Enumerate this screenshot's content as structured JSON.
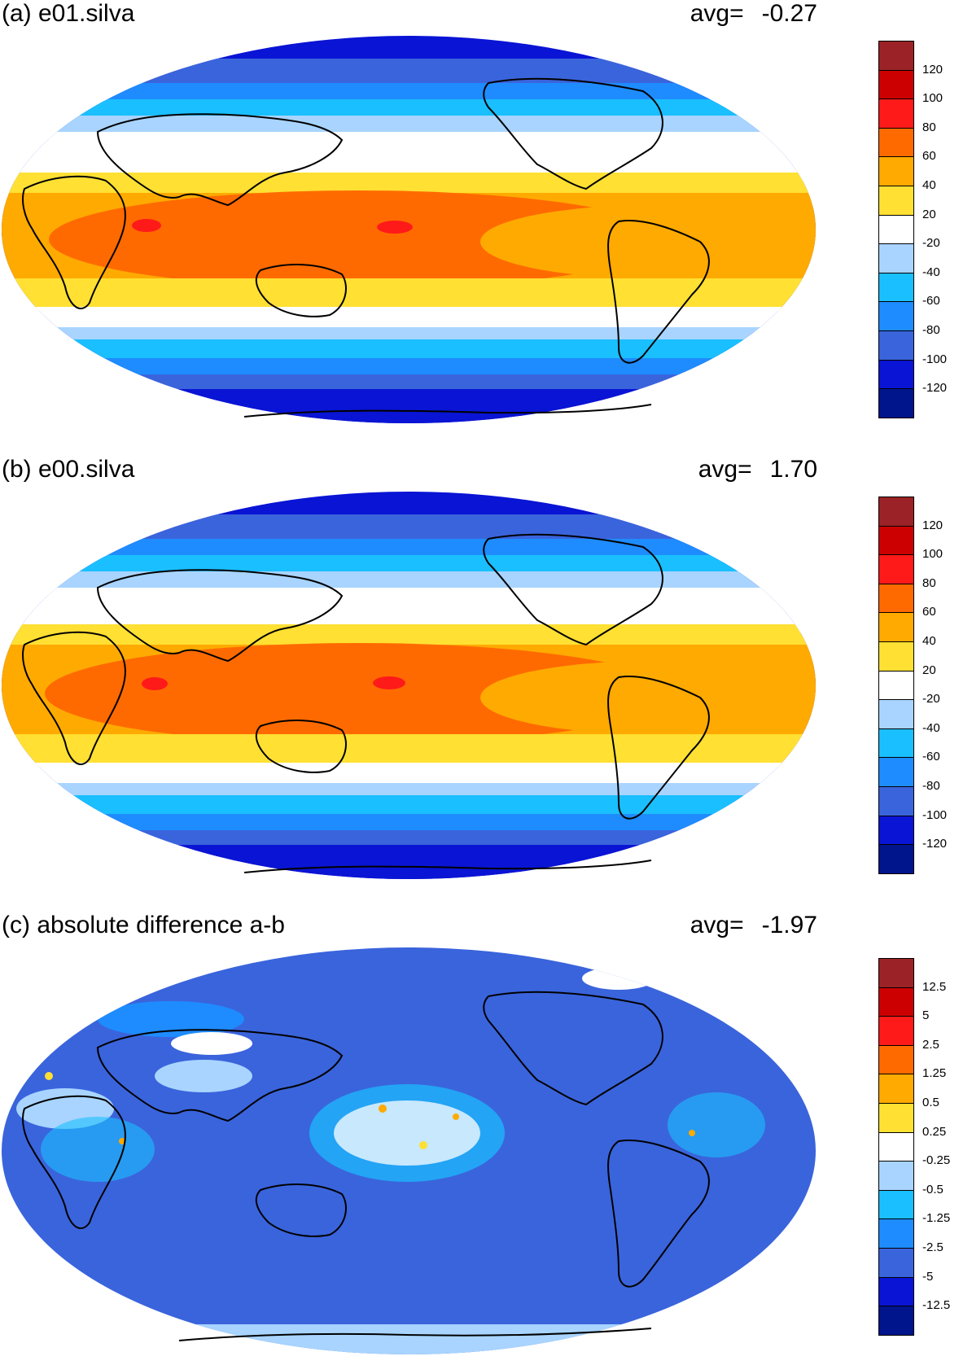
{
  "panels": [
    {
      "title": "(a) e01.silva",
      "avg_label": "avg=",
      "avg_value": "-0.27",
      "colorbar": {
        "labels": [
          "120",
          "100",
          "80",
          "60",
          "40",
          "20",
          "-20",
          "-40",
          "-60",
          "-80",
          "-100",
          "-120"
        ],
        "colors": [
          "#9b2226",
          "#cc0000",
          "#ff1a1a",
          "#ff6a00",
          "#ffaa00",
          "#ffe033",
          "#ffffff",
          "#a8d4ff",
          "#1abfff",
          "#1e8cff",
          "#3a64dc",
          "#0a14d4",
          "#00148c"
        ]
      }
    },
    {
      "title": "(b) e00.silva",
      "avg_label": "avg=",
      "avg_value": "1.70",
      "colorbar": {
        "labels": [
          "120",
          "100",
          "80",
          "60",
          "40",
          "20",
          "-20",
          "-40",
          "-60",
          "-80",
          "-100",
          "-120"
        ],
        "colors": [
          "#9b2226",
          "#cc0000",
          "#ff1a1a",
          "#ff6a00",
          "#ffaa00",
          "#ffe033",
          "#ffffff",
          "#a8d4ff",
          "#1abfff",
          "#1e8cff",
          "#3a64dc",
          "#0a14d4",
          "#00148c"
        ]
      }
    },
    {
      "title": "(c) absolute difference a-b",
      "avg_label": "avg=",
      "avg_value": "-1.97",
      "colorbar": {
        "labels": [
          "12.5",
          "5",
          "2.5",
          "1.25",
          "0.5",
          "0.25",
          "-0.25",
          "-0.5",
          "-1.25",
          "-2.5",
          "-5",
          "-12.5"
        ],
        "colors": [
          "#9b2226",
          "#cc0000",
          "#ff1a1a",
          "#ff6a00",
          "#ffaa00",
          "#ffe033",
          "#ffffff",
          "#a8d4ff",
          "#1abfff",
          "#1e8cff",
          "#3a64dc",
          "#0a14d4",
          "#00148c"
        ]
      }
    }
  ]
}
